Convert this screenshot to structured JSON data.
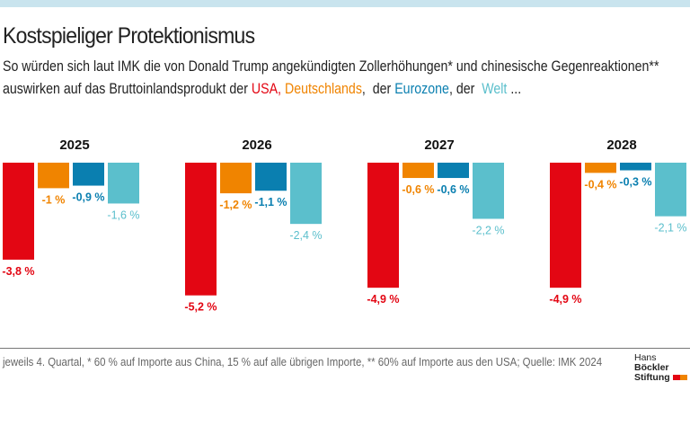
{
  "title": "Kostspieliger Protektionismus",
  "subtitle": {
    "line1": "So würden sich laut IMK die von Donald Trump angekündigten Zollerhöhungen* und chinesische Gegenreaktionen**",
    "line2_prefix": "auswirken auf das Bruttoinlandsprodukt der ",
    "usa": "USA,",
    "de": "Deutschlands",
    "sep1": ",  der ",
    "ez": "Eurozone",
    "sep2": ", der ",
    "world": "Welt",
    "suffix": " ..."
  },
  "footnote": "jeweils 4. Quartal, * 60 % auf Importe aus China, 15 % auf alle übrigen Importe, ** 60% auf Importe aus den USA; Quelle: IMK 2024",
  "logo": {
    "line1a": "Hans ",
    "line1b": "Böckler",
    "line2": "Stiftung"
  },
  "colors": {
    "USA": "#e30613",
    "Deutschland": "#f08400",
    "Eurozone": "#0a7fb0",
    "Welt": "#5bbfcc"
  },
  "chart_data": {
    "type": "bar",
    "categories": [
      "2025",
      "2026",
      "2027",
      "2028"
    ],
    "series": [
      {
        "name": "USA",
        "values": [
          -3.8,
          -5.2,
          -4.9,
          -4.9
        ],
        "labels": [
          "-3,8 %",
          "-5,2 %",
          "-4,9 %",
          "-4,9 %"
        ]
      },
      {
        "name": "Deutschland",
        "values": [
          -1.0,
          -1.2,
          -0.6,
          -0.4
        ],
        "labels": [
          "-1 %",
          "-1,2 %",
          "-0,6 %",
          "-0,4 %"
        ]
      },
      {
        "name": "Eurozone",
        "values": [
          -0.9,
          -1.1,
          -0.6,
          -0.3
        ],
        "labels": [
          "-0,9 %",
          "-1,1 %",
          "-0,6 %",
          "-0,3 %"
        ]
      },
      {
        "name": "Welt",
        "values": [
          -1.6,
          -2.4,
          -2.2,
          -2.1
        ],
        "labels": [
          "-1,6 %",
          "-2,4 %",
          "-2,2 %",
          "-2,1 %"
        ]
      }
    ],
    "unit": "%"
  }
}
